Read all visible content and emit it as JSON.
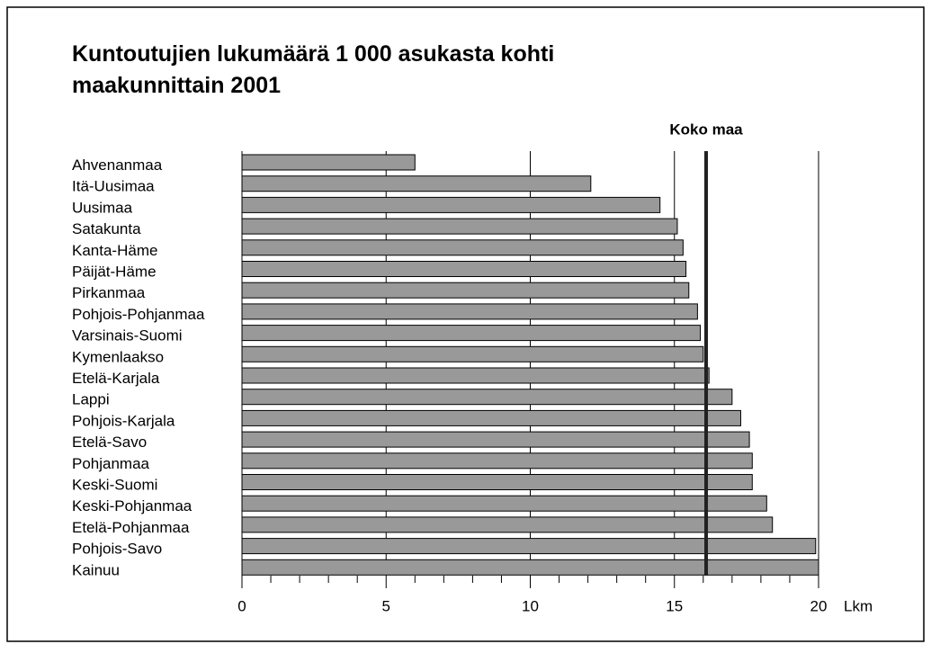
{
  "chart_data": {
    "type": "barh",
    "title": [
      "Kuntoutujien lukumäärä 1 000 asukasta kohti",
      "maakunnittain 2001"
    ],
    "categories": [
      "Ahvenanmaa",
      "Itä-Uusimaa",
      "Uusimaa",
      "Satakunta",
      "Kanta-Häme",
      "Päijät-Häme",
      "Pirkanmaa",
      "Pohjois-Pohjanmaa",
      "Varsinais-Suomi",
      "Kymenlaakso",
      "Etelä-Karjala",
      "Lappi",
      "Pohjois-Karjala",
      "Etelä-Savo",
      "Pohjanmaa",
      "Keski-Suomi",
      "Keski-Pohjanmaa",
      "Etelä-Pohjanmaa",
      "Pohjois-Savo",
      "Kainuu"
    ],
    "values": [
      6.0,
      12.1,
      14.5,
      15.1,
      15.3,
      15.4,
      15.5,
      15.8,
      15.9,
      16.0,
      16.2,
      17.0,
      17.3,
      17.6,
      17.7,
      17.7,
      18.2,
      18.4,
      19.9,
      20.0
    ],
    "color": "#999999",
    "xlim": [
      0,
      20
    ],
    "xticks": [
      0,
      5,
      10,
      15,
      20
    ],
    "minor_xticks": [
      1,
      2,
      3,
      4,
      6,
      7,
      8,
      9,
      11,
      12,
      13,
      14,
      16,
      17,
      18,
      19
    ],
    "xlabel": "Lkm",
    "grid": true,
    "reference": {
      "label": "Koko maa",
      "value": 16.1
    }
  }
}
